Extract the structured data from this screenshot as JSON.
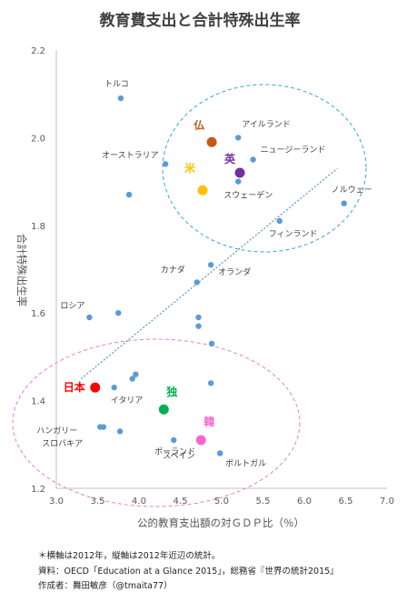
{
  "chart_data": {
    "type": "scatter",
    "title": "教育費支出と合計特殊出生率",
    "xlabel": "公的教育支出額の対ＧＤＰ比（％）",
    "ylabel": "合計特殊出生率",
    "xlim": [
      3.0,
      7.0
    ],
    "ylim": [
      1.2,
      2.2
    ],
    "x_ticks": [
      "3.0",
      "3.5",
      "4.0",
      "4.5",
      "5.0",
      "5.5",
      "6.0",
      "6.5",
      "7.0"
    ],
    "y_ticks": [
      "1.2",
      "1.4",
      "1.6",
      "1.8",
      "2.0",
      "2.2"
    ],
    "grid": false,
    "point_color": "#5b9bd5",
    "trendline": {
      "x": [
        3.3,
        6.4
      ],
      "y": [
        1.45,
        1.93
      ],
      "color": "#5b9bd5"
    },
    "points": [
      {
        "x": 3.78,
        "y": 2.09,
        "label": "トルコ"
      },
      {
        "x": 5.2,
        "y": 2.0,
        "label": "アイルランド"
      },
      {
        "x": 5.38,
        "y": 1.95,
        "label": "ニュージーランド"
      },
      {
        "x": 4.32,
        "y": 1.94,
        "label": "オーストラリア"
      },
      {
        "x": 5.2,
        "y": 1.9,
        "label": "スウェーデン"
      },
      {
        "x": 6.48,
        "y": 1.85,
        "label": "ノルウェー"
      },
      {
        "x": 3.88,
        "y": 1.87,
        "label": ""
      },
      {
        "x": 5.7,
        "y": 1.81,
        "label": "フィンランド"
      },
      {
        "x": 4.87,
        "y": 1.71,
        "label": "オランダ"
      },
      {
        "x": 4.7,
        "y": 1.67,
        "label": "カナダ"
      },
      {
        "x": 3.4,
        "y": 1.59,
        "label": "ロシア"
      },
      {
        "x": 3.75,
        "y": 1.6,
        "label": ""
      },
      {
        "x": 4.72,
        "y": 1.59,
        "label": ""
      },
      {
        "x": 4.72,
        "y": 1.57,
        "label": ""
      },
      {
        "x": 4.88,
        "y": 1.53,
        "label": ""
      },
      {
        "x": 3.96,
        "y": 1.46,
        "label": ""
      },
      {
        "x": 3.92,
        "y": 1.45,
        "label": ""
      },
      {
        "x": 4.87,
        "y": 1.44,
        "label": ""
      },
      {
        "x": 3.7,
        "y": 1.43,
        "label": "イタリア"
      },
      {
        "x": 3.53,
        "y": 1.34,
        "label": "ハンガリー"
      },
      {
        "x": 3.57,
        "y": 1.34,
        "label": ""
      },
      {
        "x": 3.77,
        "y": 1.33,
        "label": "スロバキア"
      },
      {
        "x": 4.42,
        "y": 1.31,
        "label": "スペイン"
      },
      {
        "x": 4.98,
        "y": 1.28,
        "label": "ポーランド"
      },
      {
        "x": 4.98,
        "y": 1.28,
        "label": "ポルトガル"
      }
    ],
    "highlights": [
      {
        "x": 4.88,
        "y": 1.99,
        "label": "仏",
        "color": "#c55a11"
      },
      {
        "x": 5.22,
        "y": 1.92,
        "label": "英",
        "color": "#7030a0"
      },
      {
        "x": 4.77,
        "y": 1.88,
        "label": "米",
        "color": "#ffc000"
      },
      {
        "x": 3.47,
        "y": 1.43,
        "label": "日本",
        "color": "#ff0000"
      },
      {
        "x": 4.3,
        "y": 1.38,
        "label": "独",
        "color": "#00b050"
      },
      {
        "x": 4.75,
        "y": 1.31,
        "label": "韓",
        "color": "#ff66cc"
      }
    ],
    "group_ellipses": [
      {
        "color": "#33a6d6"
      },
      {
        "color": "#e97ad6"
      }
    ]
  },
  "notes": {
    "line1": "＊横軸は2012年，縦軸は2012年近辺の統計。",
    "line2": "資料：OECD「Education at a Glance 2015」，総務省『世界の統計2015』",
    "line3": "作成者：舞田敏彦（@tmaita77）"
  }
}
